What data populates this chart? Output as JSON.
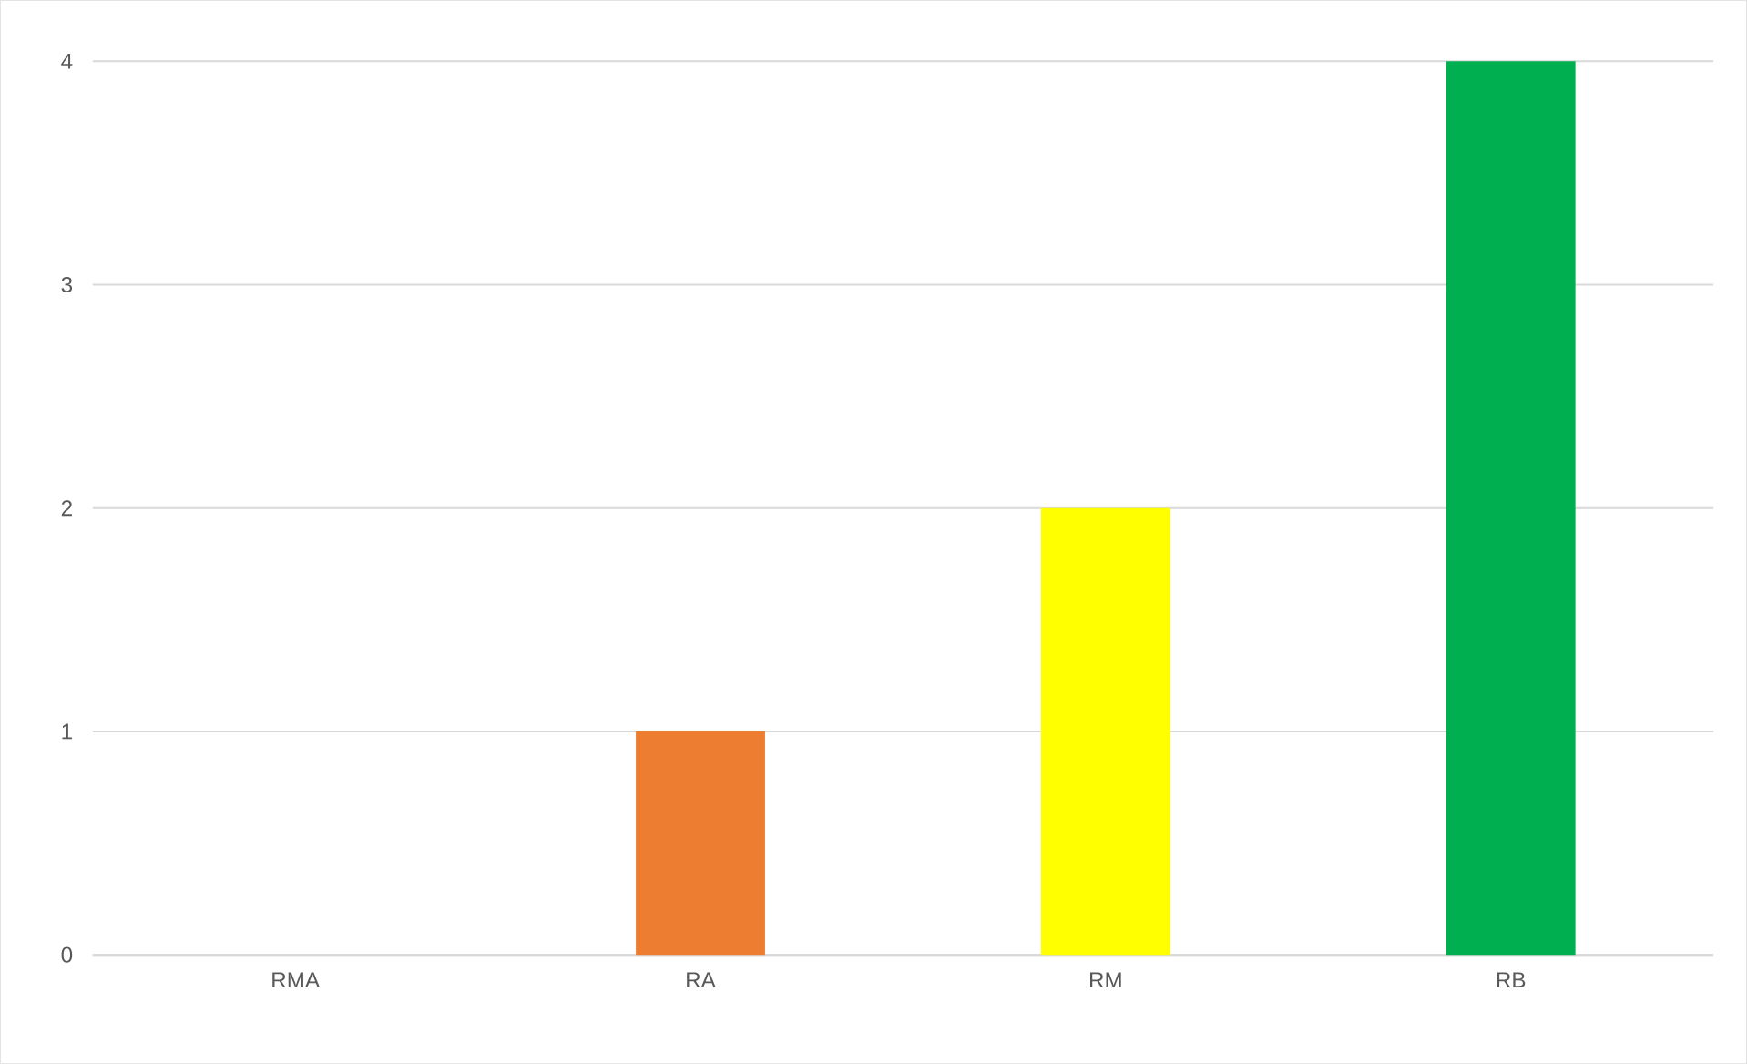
{
  "chart_data": {
    "type": "bar",
    "categories": [
      "RMA",
      "RA",
      "RM",
      "RB"
    ],
    "values": [
      0,
      1,
      2,
      4
    ],
    "colors": [
      "#4472c4",
      "#ed7d31",
      "#ffff00",
      "#00b050"
    ],
    "ylim": [
      0,
      4
    ],
    "yticks": [
      0,
      1,
      2,
      3,
      4
    ],
    "grid": "y"
  }
}
